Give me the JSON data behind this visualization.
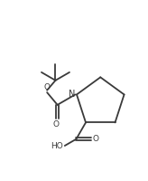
{
  "background_color": "#ffffff",
  "line_color": "#3a3a3a",
  "line_width": 1.3,
  "figsize": [
    1.64,
    2.0
  ],
  "dpi": 100,
  "xlim": [
    0,
    10
  ],
  "ylim": [
    0,
    12
  ]
}
